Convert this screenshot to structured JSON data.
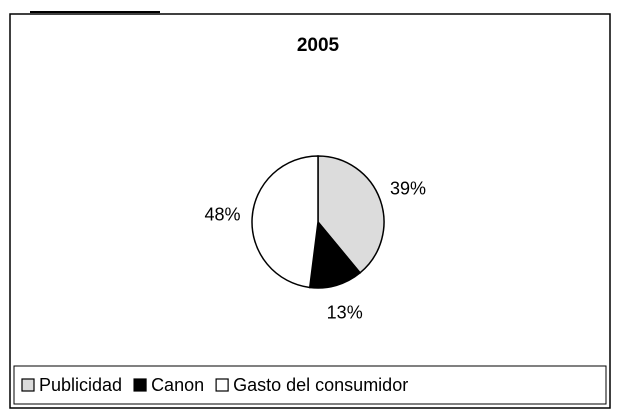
{
  "chart_data": {
    "type": "pie",
    "title": "2005",
    "categories": [
      "Publicidad",
      "Canon",
      "Gasto del consumidor"
    ],
    "values": [
      39,
      13,
      48
    ],
    "value_labels": [
      "39%",
      "13%",
      "48%"
    ],
    "colors": [
      "#dcdcdc",
      "#000000",
      "#ffffff"
    ],
    "legend": "bottom"
  }
}
